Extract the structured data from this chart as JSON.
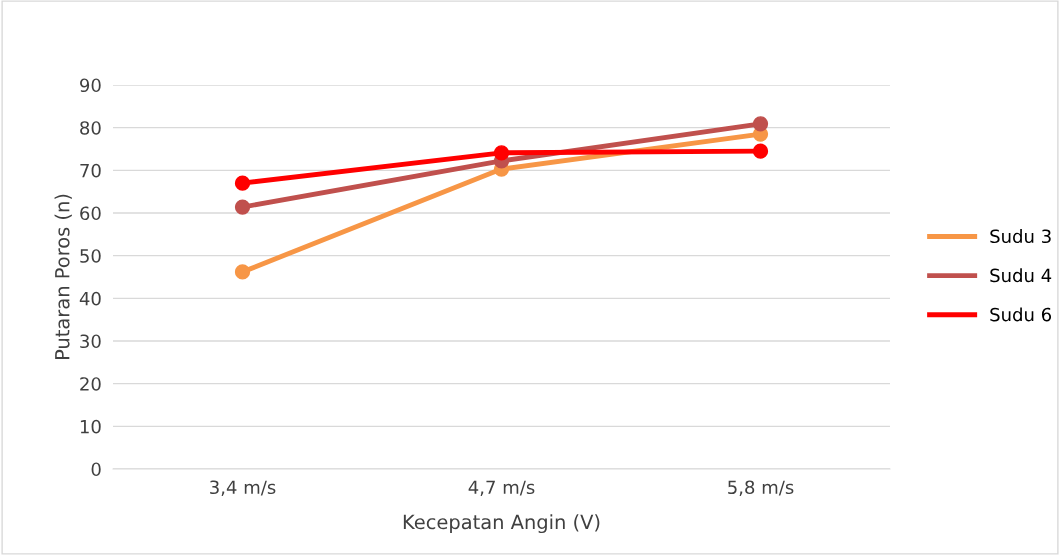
{
  "chart_data": {
    "type": "line",
    "xlabel": "Kecepatan Angin (V)",
    "ylabel": "Putaran Poros (n)",
    "categories": [
      "3,4 m/s",
      "4,7 m/s",
      "5,8 m/s"
    ],
    "series": [
      {
        "name": "Sudu 3",
        "color": "#f79646",
        "values": [
          46.2,
          70.3,
          78.5
        ]
      },
      {
        "name": "Sudu 4",
        "color": "#c0504d",
        "values": [
          61.4,
          72.2,
          80.9
        ]
      },
      {
        "name": "Sudu 6",
        "color": "#ff0000",
        "values": [
          67.0,
          74.1,
          74.5
        ]
      }
    ],
    "ylim": [
      0,
      90
    ],
    "yticks": [
      0,
      10,
      20,
      30,
      40,
      50,
      60,
      70,
      80,
      90
    ],
    "grid": "y",
    "legend": "right",
    "marker": "circle",
    "line_style": "solid"
  }
}
